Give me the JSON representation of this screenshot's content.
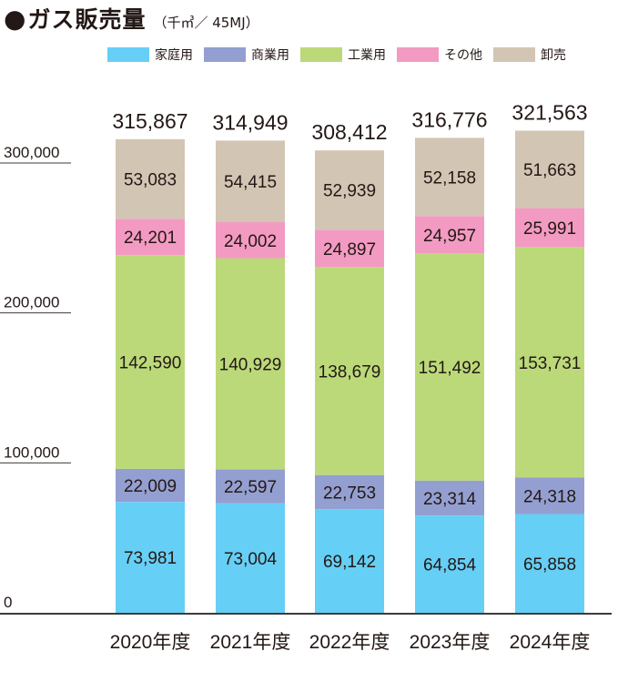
{
  "header": {
    "bullet": "●",
    "title": "ガス販売量",
    "unit": "（千㎥／ 45MJ）"
  },
  "chart_data": {
    "type": "bar",
    "stacked": true,
    "title": "ガス販売量",
    "unit": "（千㎥／ 45MJ）",
    "categories": [
      "2020年度",
      "2021年度",
      "2022年度",
      "2023年度",
      "2024年度"
    ],
    "series": [
      {
        "name": "家庭用",
        "color": "#66cff5",
        "values": [
          73981,
          73004,
          69142,
          64854,
          65858
        ],
        "labels": [
          "73,981",
          "73,004",
          "69,142",
          "64,854",
          "65,858"
        ]
      },
      {
        "name": "商業用",
        "color": "#949fd1",
        "values": [
          22009,
          22597,
          22753,
          23314,
          24318
        ],
        "labels": [
          "22,009",
          "22,597",
          "22,753",
          "23,314",
          "24,318"
        ]
      },
      {
        "name": "工業用",
        "color": "#bcd97a",
        "values": [
          142590,
          140929,
          138679,
          151492,
          153731
        ],
        "labels": [
          "142,590",
          "140,929",
          "138,679",
          "151,492",
          "153,731"
        ]
      },
      {
        "name": "その他",
        "color": "#f39ac2",
        "values": [
          24201,
          24002,
          24897,
          24957,
          25991
        ],
        "labels": [
          "24,201",
          "24,002",
          "24,897",
          "24,957",
          "25,991"
        ]
      },
      {
        "name": "卸売",
        "color": "#d3c5b3",
        "values": [
          53083,
          54415,
          52939,
          52158,
          51663
        ],
        "labels": [
          "53,083",
          "54,415",
          "52,939",
          "52,158",
          "51,663"
        ]
      }
    ],
    "totals": [
      315867,
      314949,
      308412,
      316776,
      321563
    ],
    "total_labels": [
      "315,867",
      "314,949",
      "308,412",
      "316,776",
      "321,563"
    ],
    "y_ticks": [
      0,
      100000,
      200000,
      300000
    ],
    "y_tick_labels": [
      "0",
      "100,000",
      "200,000",
      "300,000"
    ],
    "ylim": [
      0,
      321563
    ],
    "legend_position": "top",
    "grid": false
  }
}
